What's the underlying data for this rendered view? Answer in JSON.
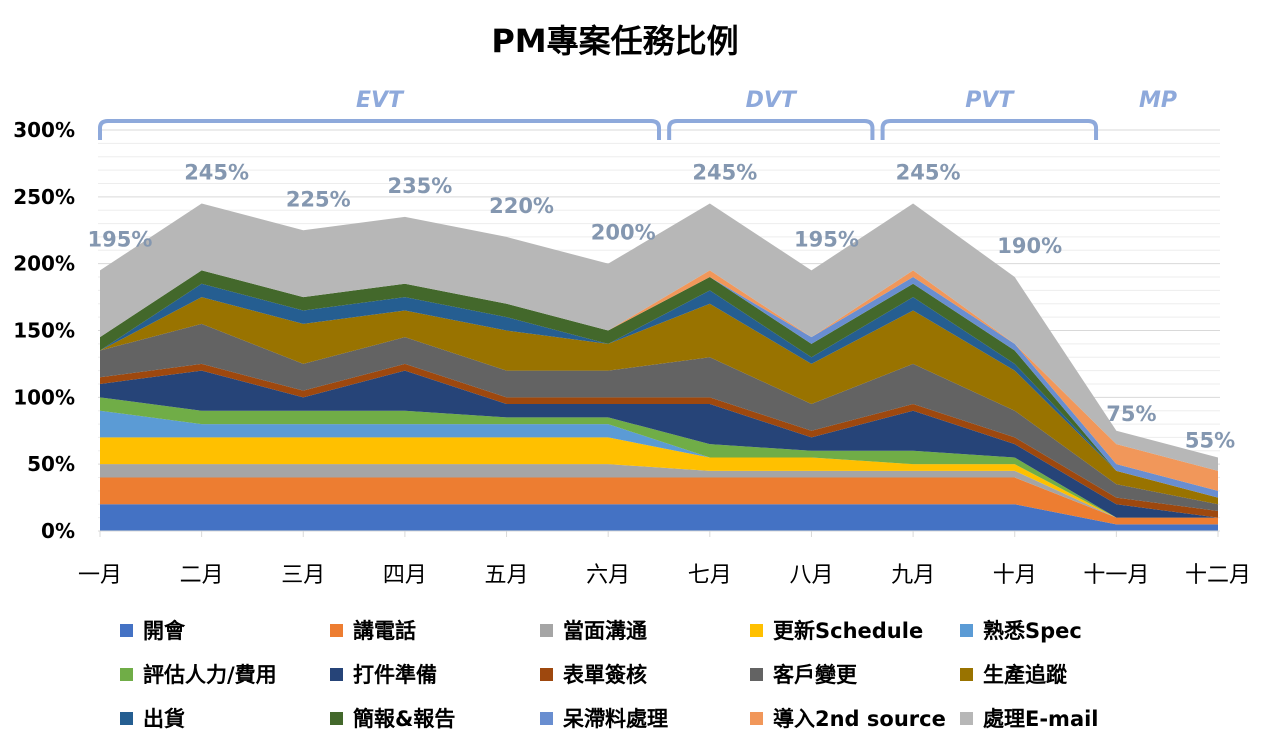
{
  "chart_data": {
    "type": "area",
    "stacked": true,
    "title": "PM專案任務比例",
    "xlabel": "",
    "ylabel": "",
    "ylim": [
      0,
      300
    ],
    "yticks": [
      "0%",
      "50%",
      "100%",
      "150%",
      "200%",
      "250%",
      "300%"
    ],
    "grid": true,
    "legend_position": "bottom",
    "categories": [
      "一月",
      "二月",
      "三月",
      "四月",
      "五月",
      "六月",
      "七月",
      "八月",
      "九月",
      "十月",
      "十一月",
      "十二月"
    ],
    "totals": [
      "195%",
      "245%",
      "225%",
      "235%",
      "220%",
      "200%",
      "245%",
      "195%",
      "245%",
      "190%",
      "75%",
      "55%"
    ],
    "phases": [
      {
        "label": "EVT",
        "from": 0,
        "to": 5.5
      },
      {
        "label": "DVT",
        "from": 5.6,
        "to": 7.6
      },
      {
        "label": "PVT",
        "from": 7.7,
        "to": 9.8
      },
      {
        "label": "MP",
        "from": 10,
        "to": 11
      }
    ],
    "series": [
      {
        "name": "開會",
        "color": "#4472C4",
        "values": [
          20,
          20,
          20,
          20,
          20,
          20,
          20,
          20,
          20,
          20,
          5,
          5
        ]
      },
      {
        "name": "講電話",
        "color": "#ED7D31",
        "values": [
          20,
          20,
          20,
          20,
          20,
          20,
          20,
          20,
          20,
          20,
          5,
          5
        ]
      },
      {
        "name": "當面溝通",
        "color": "#A5A5A5",
        "values": [
          10,
          10,
          10,
          10,
          10,
          10,
          5,
          5,
          5,
          5,
          0,
          0
        ]
      },
      {
        "name": "更新Schedule",
        "color": "#FFC000",
        "values": [
          20,
          20,
          20,
          20,
          20,
          20,
          10,
          10,
          5,
          5,
          0,
          0
        ]
      },
      {
        "name": "熟悉Spec",
        "color": "#5B9BD5",
        "values": [
          20,
          10,
          10,
          10,
          10,
          10,
          0,
          0,
          0,
          0,
          0,
          0
        ]
      },
      {
        "name": "評估人力/費用",
        "color": "#70AD47",
        "values": [
          10,
          10,
          10,
          10,
          5,
          5,
          10,
          5,
          10,
          5,
          0,
          0
        ]
      },
      {
        "name": "打件準備",
        "color": "#264478",
        "values": [
          10,
          30,
          10,
          30,
          10,
          10,
          30,
          10,
          30,
          10,
          10,
          0
        ]
      },
      {
        "name": "表單簽核",
        "color": "#9E480E",
        "values": [
          5,
          5,
          5,
          5,
          5,
          5,
          5,
          5,
          5,
          5,
          5,
          5
        ]
      },
      {
        "name": "客戶變更",
        "color": "#636363",
        "values": [
          20,
          30,
          20,
          20,
          20,
          20,
          30,
          20,
          30,
          20,
          10,
          5
        ]
      },
      {
        "name": "生產追蹤",
        "color": "#997300",
        "values": [
          0,
          20,
          30,
          20,
          30,
          20,
          40,
          30,
          40,
          30,
          10,
          5
        ]
      },
      {
        "name": "出貨",
        "color": "#255E91",
        "values": [
          0,
          10,
          10,
          10,
          10,
          0,
          10,
          5,
          10,
          5,
          0,
          0
        ]
      },
      {
        "name": "簡報&報告",
        "color": "#43682B",
        "values": [
          10,
          10,
          10,
          10,
          10,
          10,
          10,
          10,
          10,
          10,
          0,
          0
        ]
      },
      {
        "name": "呆滯料處理",
        "color": "#698ED0",
        "values": [
          0,
          0,
          0,
          0,
          0,
          0,
          0,
          5,
          5,
          5,
          5,
          5
        ]
      },
      {
        "name": "導入2nd source",
        "color": "#F1975A",
        "values": [
          0,
          0,
          0,
          0,
          0,
          0,
          5,
          0,
          5,
          0,
          15,
          15
        ]
      },
      {
        "name": "處理E-mail",
        "color": "#B7B7B7",
        "values": [
          50,
          50,
          50,
          50,
          50,
          50,
          50,
          50,
          50,
          50,
          10,
          10
        ]
      }
    ]
  }
}
